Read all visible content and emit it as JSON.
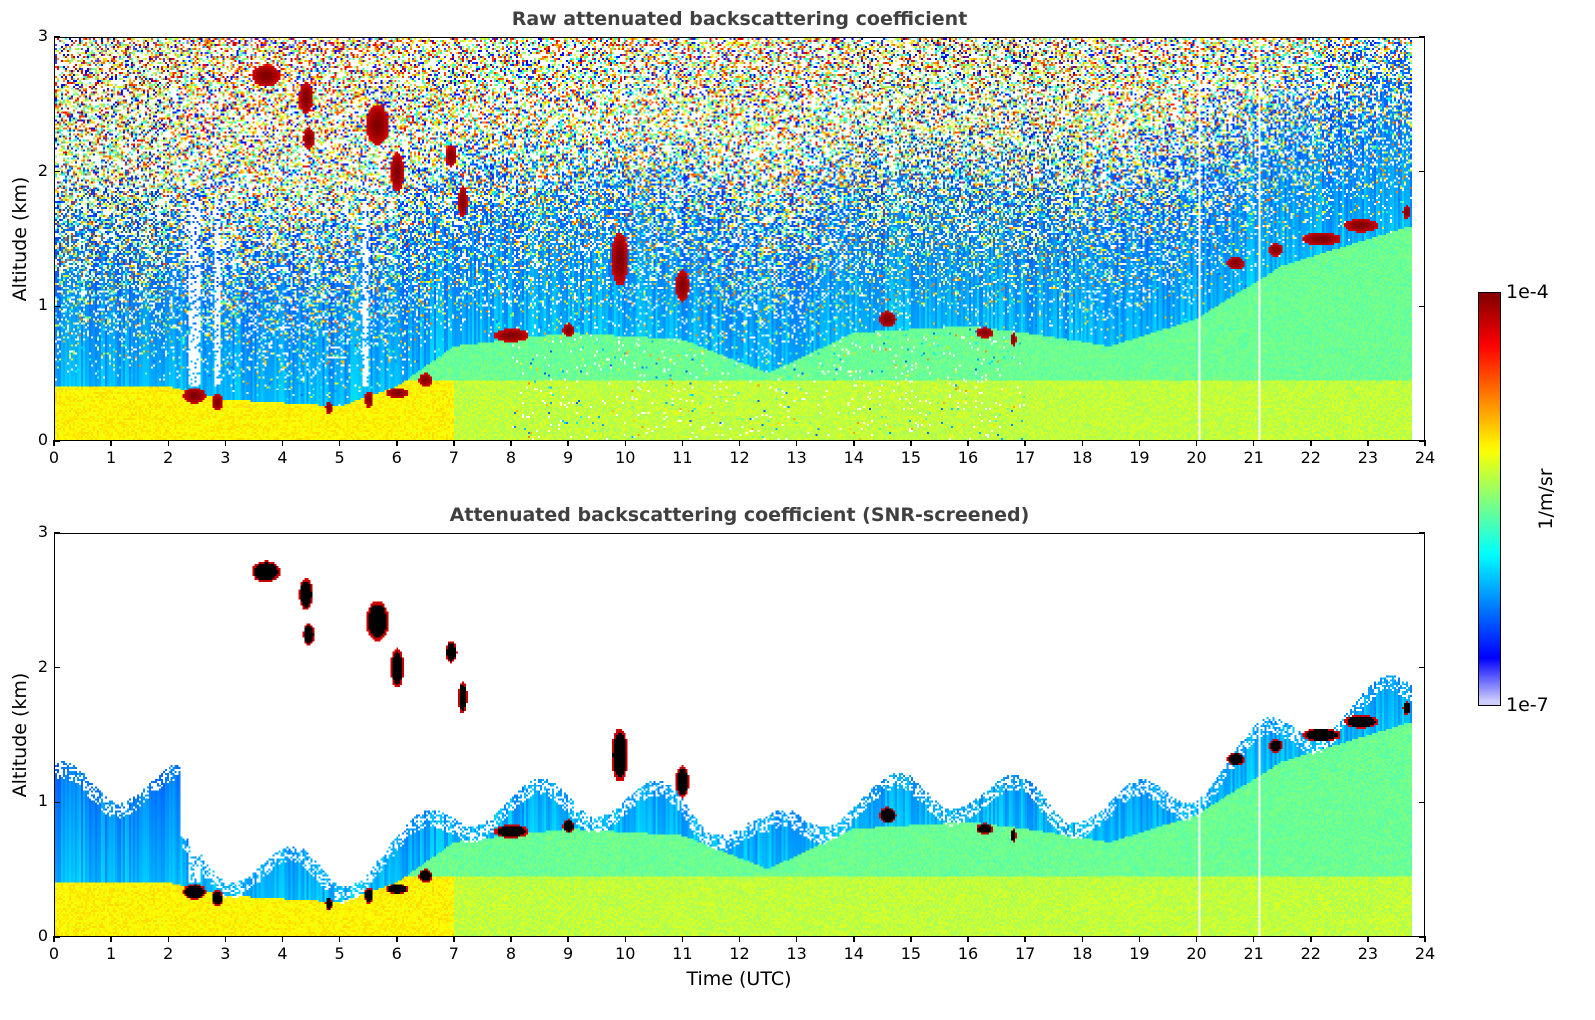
{
  "chart_data": [
    {
      "type": "heatmap",
      "title": "Raw attenuated backscattering coefficient",
      "xlabel": "",
      "ylabel": "Altitude (km)",
      "xlim": [
        0,
        24
      ],
      "ylim": [
        0,
        3
      ],
      "x_ticks": [
        "0",
        "1",
        "2",
        "3",
        "4",
        "5",
        "6",
        "7",
        "8",
        "9",
        "10",
        "11",
        "12",
        "13",
        "14",
        "15",
        "16",
        "17",
        "18",
        "19",
        "20",
        "21",
        "22",
        "23",
        "24"
      ],
      "y_ticks": [
        "0",
        "1",
        "2",
        "3"
      ],
      "data_end_hour": 23.8,
      "screened": false,
      "gaps_hours": [
        20.07,
        21.1
      ]
    },
    {
      "type": "heatmap",
      "title": "Attenuated backscattering coefficient (SNR-screened)",
      "xlabel": "Time (UTC)",
      "ylabel": "Altitude (km)",
      "xlim": [
        0,
        24
      ],
      "ylim": [
        0,
        3
      ],
      "x_ticks": [
        "0",
        "1",
        "2",
        "3",
        "4",
        "5",
        "6",
        "7",
        "8",
        "9",
        "10",
        "11",
        "12",
        "13",
        "14",
        "15",
        "16",
        "17",
        "18",
        "19",
        "20",
        "21",
        "22",
        "23",
        "24"
      ],
      "y_ticks": [
        "0",
        "1",
        "2",
        "3"
      ],
      "data_end_hour": 23.8,
      "screened": true,
      "gaps_hours": [
        20.07,
        21.1
      ]
    }
  ],
  "colorbar": {
    "label": "1/m/sr",
    "min_label": "1e-7",
    "max_label": "1e-4",
    "vmin": 1e-07,
    "vmax": 0.0001,
    "scale": "log",
    "colormap": "jet"
  },
  "features": {
    "boundary_layer_top_km": [
      [
        0,
        0.4
      ],
      [
        2,
        0.4
      ],
      [
        3,
        0.3
      ],
      [
        5,
        0.25
      ],
      [
        6,
        0.4
      ],
      [
        7,
        0.7
      ],
      [
        9,
        0.8
      ],
      [
        11,
        0.75
      ],
      [
        12.5,
        0.5
      ],
      [
        14,
        0.8
      ],
      [
        16,
        0.85
      ],
      [
        17,
        0.8
      ],
      [
        18.5,
        0.7
      ],
      [
        20,
        0.9
      ],
      [
        21.5,
        1.3
      ],
      [
        23.8,
        1.6
      ]
    ],
    "cloud_patches": [
      {
        "t": 3.7,
        "z": 2.72,
        "dt": 0.25,
        "dz": 0.08
      },
      {
        "t": 4.4,
        "z": 2.55,
        "dt": 0.12,
        "dz": 0.12
      },
      {
        "t": 4.45,
        "z": 2.25,
        "dt": 0.1,
        "dz": 0.08
      },
      {
        "t": 5.65,
        "z": 2.35,
        "dt": 0.2,
        "dz": 0.15
      },
      {
        "t": 6.0,
        "z": 2.0,
        "dt": 0.12,
        "dz": 0.15
      },
      {
        "t": 6.95,
        "z": 2.12,
        "dt": 0.1,
        "dz": 0.08
      },
      {
        "t": 7.15,
        "z": 1.78,
        "dt": 0.08,
        "dz": 0.12
      },
      {
        "t": 2.45,
        "z": 0.33,
        "dt": 0.2,
        "dz": 0.06
      },
      {
        "t": 2.85,
        "z": 0.28,
        "dt": 0.1,
        "dz": 0.06
      },
      {
        "t": 4.8,
        "z": 0.24,
        "dt": 0.06,
        "dz": 0.05
      },
      {
        "t": 5.5,
        "z": 0.3,
        "dt": 0.08,
        "dz": 0.06
      },
      {
        "t": 6.0,
        "z": 0.35,
        "dt": 0.2,
        "dz": 0.04
      },
      {
        "t": 6.5,
        "z": 0.45,
        "dt": 0.12,
        "dz": 0.05
      },
      {
        "t": 8.0,
        "z": 0.78,
        "dt": 0.3,
        "dz": 0.05
      },
      {
        "t": 9.0,
        "z": 0.82,
        "dt": 0.1,
        "dz": 0.05
      },
      {
        "t": 9.9,
        "z": 1.35,
        "dt": 0.15,
        "dz": 0.2
      },
      {
        "t": 11.0,
        "z": 1.15,
        "dt": 0.12,
        "dz": 0.12
      },
      {
        "t": 14.6,
        "z": 0.9,
        "dt": 0.15,
        "dz": 0.06
      },
      {
        "t": 16.3,
        "z": 0.8,
        "dt": 0.15,
        "dz": 0.04
      },
      {
        "t": 16.8,
        "z": 0.75,
        "dt": 0.05,
        "dz": 0.05
      },
      {
        "t": 20.7,
        "z": 1.32,
        "dt": 0.15,
        "dz": 0.05
      },
      {
        "t": 21.4,
        "z": 1.42,
        "dt": 0.12,
        "dz": 0.05
      },
      {
        "t": 22.2,
        "z": 1.5,
        "dt": 0.35,
        "dz": 0.05
      },
      {
        "t": 22.9,
        "z": 1.6,
        "dt": 0.3,
        "dz": 0.05
      },
      {
        "t": 23.7,
        "z": 1.7,
        "dt": 0.07,
        "dz": 0.05
      }
    ]
  }
}
